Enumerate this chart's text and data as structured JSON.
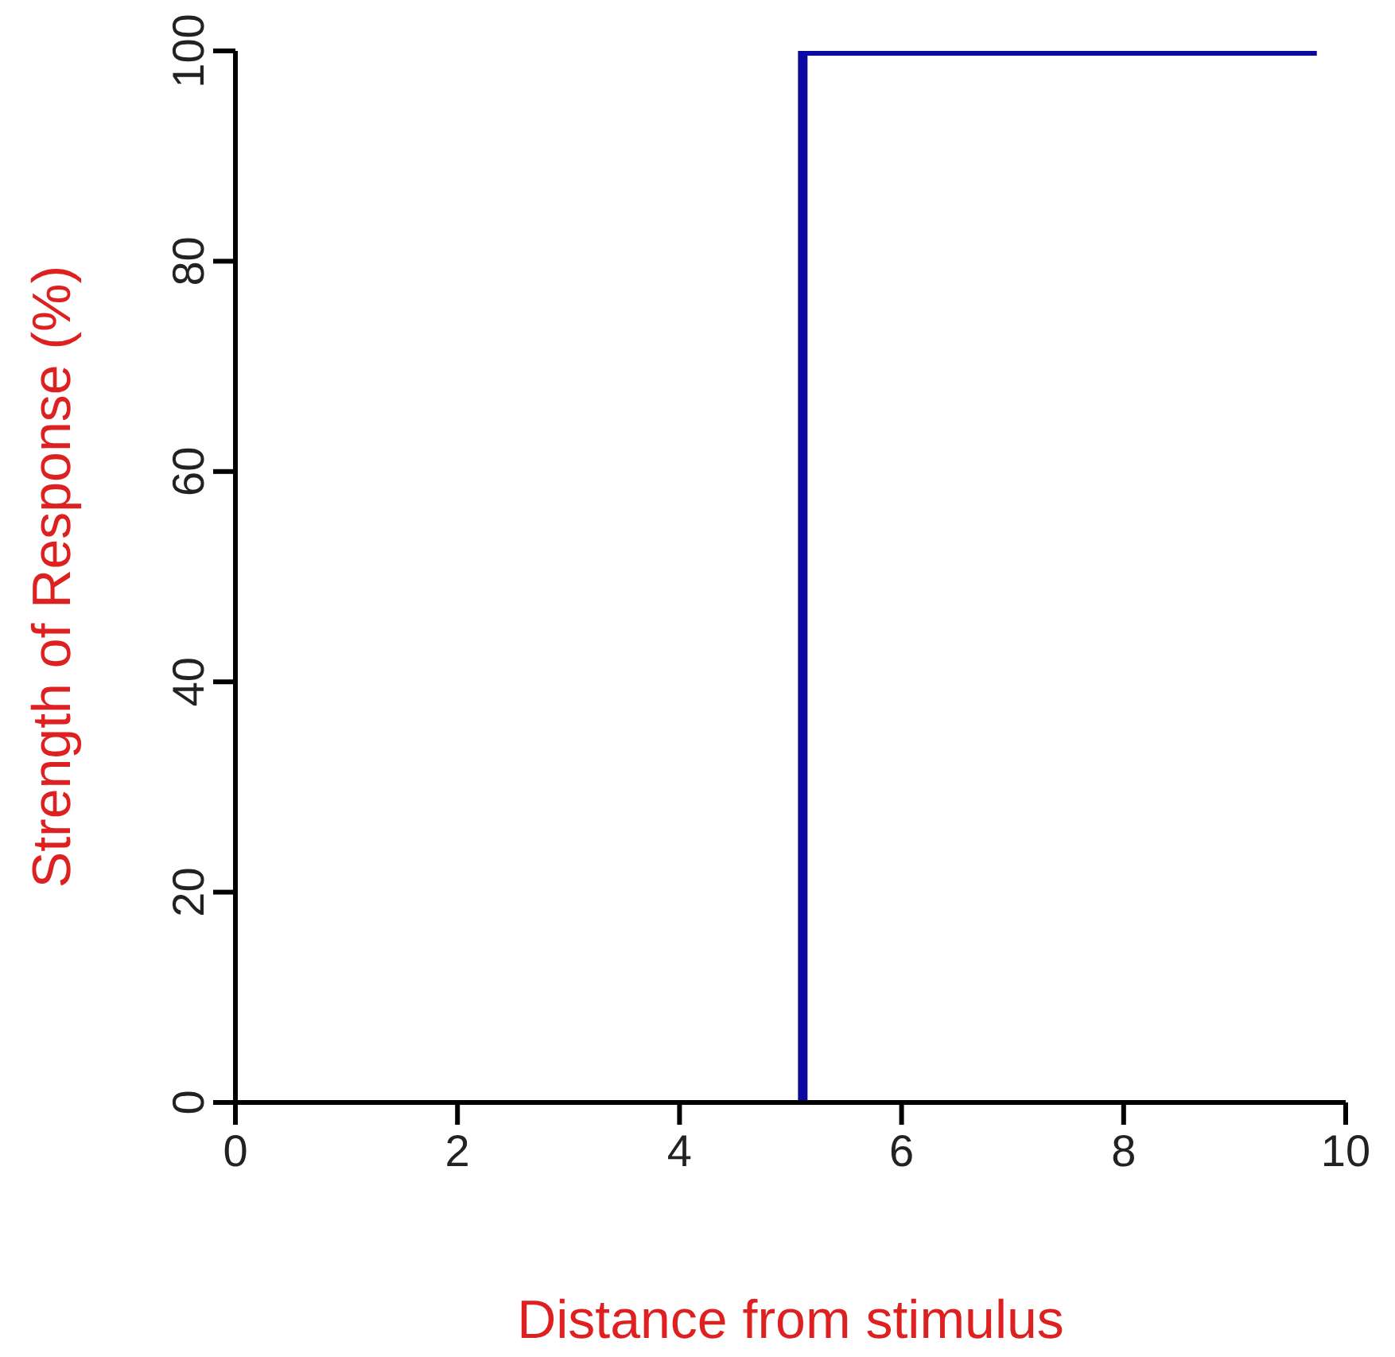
{
  "chart_data": {
    "type": "step",
    "xlabel": "Distance from stimulus",
    "ylabel": "Strength of Response (%)",
    "series": [
      {
        "color": "#0a0aa0",
        "x": [
          5.11,
          9.74
        ],
        "values": [
          0,
          100
        ]
      }
    ],
    "xlim": [
      0,
      10
    ],
    "xticks": [
      0,
      2,
      4,
      6,
      8,
      10
    ],
    "ylim": [
      0,
      100
    ],
    "yticks": [
      0,
      20,
      40,
      60,
      80,
      100
    ],
    "grid": false,
    "legend": false,
    "marker": "none",
    "line_style": "solid"
  }
}
